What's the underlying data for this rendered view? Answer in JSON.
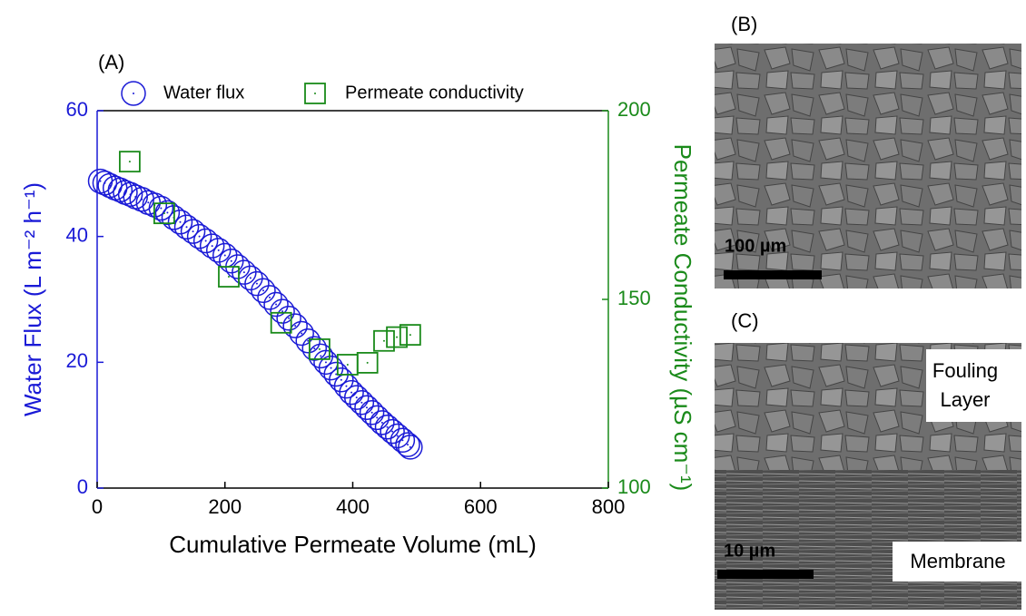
{
  "chart_data": {
    "type": "scatter",
    "panel_label": "(A)",
    "xlabel": "Cumulative Permeate Volume (mL)",
    "ylabel": "Water Flux (L m⁻² h⁻¹)",
    "y2label": "Permeate Conductivity (µS cm⁻¹)",
    "xlim": [
      0,
      800
    ],
    "xticks": [
      0,
      200,
      400,
      600,
      800
    ],
    "ylim": [
      0,
      60
    ],
    "yticks": [
      0,
      20,
      40,
      60
    ],
    "y2lim": [
      100,
      200
    ],
    "y2ticks": [
      100,
      150,
      200
    ],
    "series": [
      {
        "name": "Water flux",
        "color": "#1a1ad6",
        "marker": "circle",
        "x": [
          5,
          12,
          20,
          28,
          36,
          44,
          52,
          60,
          70,
          80,
          90,
          100,
          110,
          120,
          130,
          140,
          150,
          160,
          170,
          180,
          190,
          200,
          210,
          220,
          230,
          240,
          250,
          260,
          270,
          280,
          290,
          300,
          310,
          320,
          330,
          340,
          350,
          358,
          366,
          374,
          382,
          390,
          398,
          406,
          414,
          422,
          430,
          438,
          446,
          454,
          462,
          470,
          478,
          486,
          490
        ],
        "values": [
          48.8,
          48.5,
          48.1,
          47.7,
          47.4,
          47.0,
          46.7,
          46.3,
          45.9,
          45.4,
          45.0,
          44.5,
          43.8,
          43.0,
          42.3,
          41.5,
          40.8,
          40.0,
          39.3,
          38.5,
          37.8,
          37.0,
          36.1,
          35.2,
          34.3,
          33.4,
          32.5,
          31.4,
          30.3,
          29.2,
          28.1,
          27.0,
          25.8,
          24.6,
          23.4,
          22.2,
          21.0,
          20.0,
          19.1,
          18.1,
          17.2,
          16.2,
          15.2,
          14.4,
          13.6,
          12.8,
          12.0,
          11.2,
          10.4,
          9.7,
          9.0,
          8.3,
          7.6,
          6.9,
          6.5
        ]
      },
      {
        "name": "Permeate conductivity",
        "color": "#1a8a1a",
        "marker": "square",
        "axis": "y2",
        "x": [
          51,
          105,
          206,
          288,
          348,
          392,
          423,
          449,
          469,
          490
        ],
        "values": [
          186.5,
          172.8,
          156,
          143.8,
          136.8,
          132.7,
          133.2,
          139,
          140,
          140.6
        ]
      }
    ]
  },
  "images": [
    {
      "label": "(B)",
      "scale_bar": "100 µm"
    },
    {
      "label": "(C)",
      "scale_bar": "10 µm",
      "annotations": {
        "fouling": [
          "Fouling",
          "Layer"
        ],
        "membrane": "Membrane"
      }
    }
  ]
}
